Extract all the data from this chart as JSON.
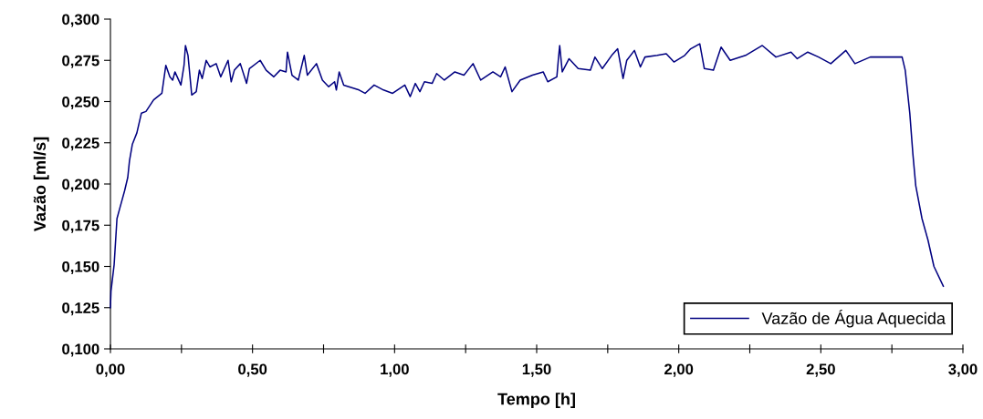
{
  "chart_data": {
    "type": "line",
    "xlabel": "Tempo [h]",
    "ylabel": "Vazão [ml/s]",
    "xlim": [
      0,
      3
    ],
    "ylim": [
      0.1,
      0.3
    ],
    "xticks": [
      {
        "value": 0,
        "label": "0,00"
      },
      {
        "value": 0.25,
        "label": null
      },
      {
        "value": 0.5,
        "label": "0,50"
      },
      {
        "value": 0.75,
        "label": null
      },
      {
        "value": 1,
        "label": "1,00"
      },
      {
        "value": 1.25,
        "label": null
      },
      {
        "value": 1.5,
        "label": "1,50"
      },
      {
        "value": 1.75,
        "label": null
      },
      {
        "value": 2,
        "label": "2,00"
      },
      {
        "value": 2.25,
        "label": null
      },
      {
        "value": 2.5,
        "label": "2,50"
      },
      {
        "value": 2.75,
        "label": null
      },
      {
        "value": 3,
        "label": "3,00"
      }
    ],
    "yticks": [
      {
        "value": 0.1,
        "label": "0,100"
      },
      {
        "value": 0.125,
        "label": "0,125"
      },
      {
        "value": 0.15,
        "label": "0,150"
      },
      {
        "value": 0.175,
        "label": "0,175"
      },
      {
        "value": 0.2,
        "label": "0,200"
      },
      {
        "value": 0.225,
        "label": "0,225"
      },
      {
        "value": 0.25,
        "label": "0,250"
      },
      {
        "value": 0.275,
        "label": "0,275"
      },
      {
        "value": 0.3,
        "label": "0,300"
      }
    ],
    "grid": false,
    "legend": "bottom right",
    "marker": "none",
    "line_style": "solid",
    "series": [
      {
        "name": "Vazão de Água Aquecida",
        "color": "#000080",
        "x": [
          0,
          0.002,
          0.013,
          0.023,
          0.034,
          0.05,
          0.061,
          0.067,
          0.077,
          0.093,
          0.109,
          0.125,
          0.152,
          0.181,
          0.195,
          0.209,
          0.219,
          0.227,
          0.248,
          0.259,
          0.264,
          0.273,
          0.286,
          0.302,
          0.313,
          0.323,
          0.337,
          0.35,
          0.372,
          0.388,
          0.414,
          0.425,
          0.436,
          0.457,
          0.479,
          0.489,
          0.527,
          0.548,
          0.575,
          0.597,
          0.618,
          0.623,
          0.639,
          0.661,
          0.682,
          0.693,
          0.725,
          0.746,
          0.768,
          0.789,
          0.795,
          0.805,
          0.821,
          0.875,
          0.896,
          0.928,
          0.961,
          0.993,
          1.036,
          1.055,
          1.073,
          1.089,
          1.105,
          1.132,
          1.148,
          1.175,
          1.212,
          1.244,
          1.276,
          1.303,
          1.346,
          1.373,
          1.389,
          1.413,
          1.442,
          1.485,
          1.523,
          1.539,
          1.571,
          1.576,
          1.581,
          1.59,
          1.614,
          1.646,
          1.689,
          1.705,
          1.731,
          1.764,
          1.785,
          1.804,
          1.817,
          1.844,
          1.865,
          1.881,
          1.924,
          1.956,
          1.983,
          2.021,
          2.042,
          2.074,
          2.09,
          2.122,
          2.149,
          2.181,
          2.235,
          2.294,
          2.342,
          2.395,
          2.417,
          2.454,
          2.492,
          2.535,
          2.588,
          2.62,
          2.674,
          2.738,
          2.786,
          2.797,
          2.813,
          2.824,
          2.834,
          2.856,
          2.877,
          2.898,
          2.931
        ],
        "values": [
          0.125,
          0.135,
          0.151,
          0.179,
          0.186,
          0.196,
          0.204,
          0.214,
          0.224,
          0.231,
          0.243,
          0.244,
          0.251,
          0.255,
          0.272,
          0.265,
          0.263,
          0.268,
          0.26,
          0.272,
          0.284,
          0.278,
          0.254,
          0.256,
          0.269,
          0.264,
          0.275,
          0.271,
          0.273,
          0.265,
          0.275,
          0.262,
          0.269,
          0.273,
          0.261,
          0.27,
          0.275,
          0.269,
          0.265,
          0.269,
          0.268,
          0.28,
          0.266,
          0.263,
          0.278,
          0.266,
          0.273,
          0.263,
          0.259,
          0.262,
          0.257,
          0.268,
          0.26,
          0.257,
          0.255,
          0.26,
          0.257,
          0.255,
          0.26,
          0.253,
          0.261,
          0.256,
          0.262,
          0.261,
          0.267,
          0.263,
          0.268,
          0.266,
          0.273,
          0.263,
          0.268,
          0.265,
          0.271,
          0.256,
          0.263,
          0.266,
          0.268,
          0.262,
          0.265,
          0.275,
          0.284,
          0.268,
          0.276,
          0.27,
          0.269,
          0.277,
          0.27,
          0.278,
          0.282,
          0.264,
          0.275,
          0.281,
          0.271,
          0.277,
          0.278,
          0.279,
          0.274,
          0.278,
          0.282,
          0.285,
          0.27,
          0.269,
          0.283,
          0.275,
          0.278,
          0.284,
          0.277,
          0.28,
          0.276,
          0.28,
          0.277,
          0.273,
          0.281,
          0.273,
          0.277,
          0.277,
          0.277,
          0.269,
          0.243,
          0.218,
          0.199,
          0.179,
          0.166,
          0.15,
          0.138
        ]
      }
    ]
  }
}
